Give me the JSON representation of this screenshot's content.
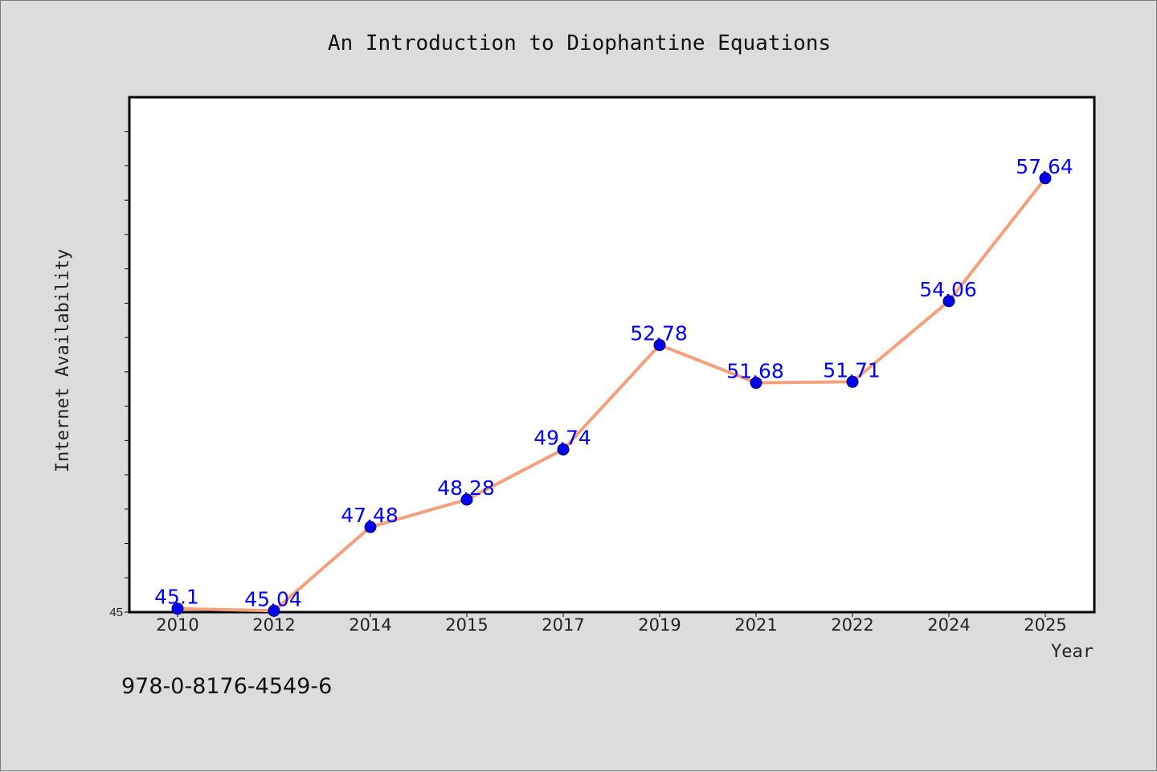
{
  "chart_data": {
    "type": "line",
    "title": "An Introduction to Diophantine Equations",
    "xlabel": "Year",
    "ylabel": "Internet Availability",
    "categories": [
      "2010",
      "2012",
      "2014",
      "2015",
      "2017",
      "2019",
      "2021",
      "2022",
      "2024",
      "2025"
    ],
    "series": [
      {
        "values": [
          45.1,
          45.04,
          47.48,
          48.28,
          49.74,
          52.78,
          51.68,
          51.71,
          54.06,
          57.64
        ],
        "labels": [
          "45.1",
          "45.04",
          "47.48",
          "48.28",
          "49.74",
          "52.78",
          "51.68",
          "51.71",
          "54.06",
          "57.64"
        ]
      }
    ],
    "ylim": [
      45,
      60
    ],
    "yticks_labeled": [
      "45"
    ],
    "grid": false,
    "colors": {
      "line": "#f4a07a",
      "marker": "#0000ee",
      "marker_edge": "#00005a",
      "data_label": "#0000ff",
      "background": "#dcdcdc",
      "plot_bg": "#ffffff"
    }
  },
  "footer": {
    "isbn": "978-0-8176-4549-6"
  }
}
